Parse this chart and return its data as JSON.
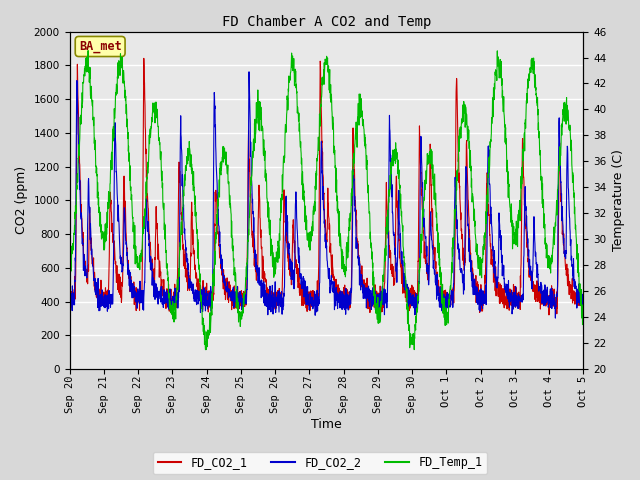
{
  "title": "FD Chamber A CO2 and Temp",
  "xlabel": "Time",
  "ylabel_left": "CO2 (ppm)",
  "ylabel_right": "Temperature (C)",
  "ylim_left": [
    0,
    2000
  ],
  "ylim_right": [
    20,
    46
  ],
  "yticks_left": [
    0,
    200,
    400,
    600,
    800,
    1000,
    1200,
    1400,
    1600,
    1800,
    2000
  ],
  "yticks_right": [
    20,
    22,
    24,
    26,
    28,
    30,
    32,
    34,
    36,
    38,
    40,
    42,
    44,
    46
  ],
  "background_color": "#d8d8d8",
  "plot_bg_color": "#e8e8e8",
  "color_co2_1": "#cc0000",
  "color_co2_2": "#0000cc",
  "color_temp": "#00bb00",
  "legend_label_1": "FD_CO2_1",
  "legend_label_2": "FD_CO2_2",
  "legend_label_3": "FD_Temp_1",
  "watermark_text": "BA_met",
  "watermark_color": "#8b0000",
  "watermark_bg": "#ffffaa",
  "num_days": 15,
  "points_per_day": 144,
  "seed": 42,
  "x_tick_labels": [
    "Sep 20",
    "Sep 21",
    "Sep 22",
    "Sep 23",
    "Sep 24",
    "Sep 25",
    "Sep 26",
    "Sep 27",
    "Sep 28",
    "Sep 29",
    "Sep 30",
    "Oct 1",
    "Oct 2",
    "Oct 3",
    "Oct 4",
    "Oct 5"
  ],
  "title_fontsize": 10,
  "axis_label_fontsize": 9,
  "tick_fontsize": 7.5,
  "legend_fontsize": 8.5
}
